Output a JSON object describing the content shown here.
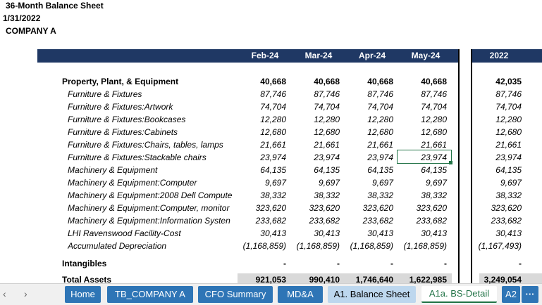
{
  "header": {
    "title": "36-Month Balance Sheet",
    "date": "1/31/2022",
    "company": "COMPANY A"
  },
  "table": {
    "columns": [
      "Feb-24",
      "Mar-24",
      "Apr-24",
      "May-24"
    ],
    "columns2": [
      "2022"
    ],
    "rows": [
      {
        "label": "Property, Plant, & Equipment",
        "values": [
          "40,668",
          "40,668",
          "40,668",
          "40,668"
        ],
        "values2": [
          "42,035"
        ]
      },
      {
        "label": "Furniture & Fixtures",
        "values": [
          "87,746",
          "87,746",
          "87,746",
          "87,746"
        ],
        "values2": [
          "87,746"
        ]
      },
      {
        "label": "Furniture & Fixtures:Artwork",
        "values": [
          "74,704",
          "74,704",
          "74,704",
          "74,704"
        ],
        "values2": [
          "74,704"
        ]
      },
      {
        "label": "Furniture & Fixtures:Bookcases",
        "values": [
          "12,280",
          "12,280",
          "12,280",
          "12,280"
        ],
        "values2": [
          "12,280"
        ]
      },
      {
        "label": "Furniture & Fixtures:Cabinets",
        "values": [
          "12,680",
          "12,680",
          "12,680",
          "12,680"
        ],
        "values2": [
          "12,680"
        ]
      },
      {
        "label": "Furniture & Fixtures:Chairs, tables, lamps",
        "values": [
          "21,661",
          "21,661",
          "21,661",
          "21,661"
        ],
        "values2": [
          "21,661"
        ]
      },
      {
        "label": "Furniture & Fixtures:Stackable chairs",
        "values": [
          "23,974",
          "23,974",
          "23,974",
          "23,974"
        ],
        "values2": [
          "23,974"
        ]
      },
      {
        "label": "Machinery & Equipment",
        "values": [
          "64,135",
          "64,135",
          "64,135",
          "64,135"
        ],
        "values2": [
          "64,135"
        ]
      },
      {
        "label": "Machinery & Equipment:Computer",
        "values": [
          "9,697",
          "9,697",
          "9,697",
          "9,697"
        ],
        "values2": [
          "9,697"
        ]
      },
      {
        "label": "Machinery & Equipment:2008 Dell Compute",
        "values": [
          "38,332",
          "38,332",
          "38,332",
          "38,332"
        ],
        "values2": [
          "38,332"
        ]
      },
      {
        "label": "Machinery & Equipment:Computer, monitor",
        "values": [
          "323,620",
          "323,620",
          "323,620",
          "323,620"
        ],
        "values2": [
          "323,620"
        ]
      },
      {
        "label": "Machinery & Equipment:Information Systen",
        "values": [
          "233,682",
          "233,682",
          "233,682",
          "233,682"
        ],
        "values2": [
          "233,682"
        ]
      },
      {
        "label": "LHI Ravenswood Facility-Cost",
        "values": [
          "30,413",
          "30,413",
          "30,413",
          "30,413"
        ],
        "values2": [
          "30,413"
        ]
      },
      {
        "label": "Accumulated Depreciation",
        "values": [
          "(1,168,859)",
          "(1,168,859)",
          "(1,168,859)",
          "(1,168,859)"
        ],
        "values2": [
          "(1,167,493)"
        ]
      },
      {
        "label": "Intangibles",
        "values": [
          "-",
          "-",
          "-",
          "-"
        ],
        "values2": [
          "-"
        ]
      },
      {
        "label": "Total Assets",
        "values": [
          "921,053",
          "990,410",
          "1,746,640",
          "1,622,985"
        ],
        "values2": [
          "3,249,054"
        ]
      }
    ]
  },
  "tabs": [
    "Home",
    "TB_COMPANY A",
    "CFO Summary",
    "MD&A",
    "A1. Balance Sheet",
    "A1a. BS-Detail",
    "A2"
  ]
}
